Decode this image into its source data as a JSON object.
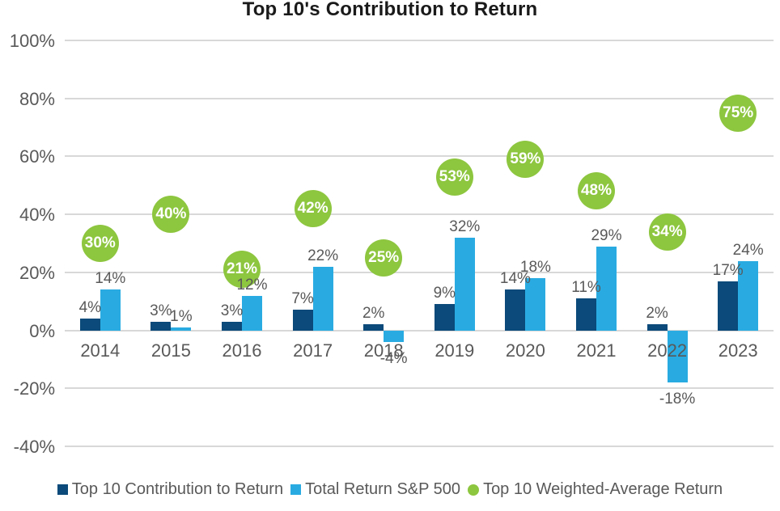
{
  "chart_data": {
    "type": "bar",
    "title": "Top 10's Contribution to Return",
    "categories": [
      "2014",
      "2015",
      "2016",
      "2017",
      "2018",
      "2019",
      "2020",
      "2021",
      "2022",
      "2023"
    ],
    "series": [
      {
        "name": "Top 10 Contribution to Return",
        "type": "bar",
        "marker": "square",
        "color": "#0b4a7a",
        "values": [
          4,
          3,
          3,
          7,
          2,
          9,
          14,
          11,
          2,
          17
        ]
      },
      {
        "name": "Total Return S&P 500",
        "type": "bar",
        "marker": "square",
        "color": "#29abe2",
        "values": [
          14,
          1,
          12,
          22,
          -4,
          32,
          18,
          29,
          -18,
          24
        ]
      },
      {
        "name": "Top 10 Weighted-Average Return",
        "type": "point",
        "marker": "circle",
        "color": "#8dc63f",
        "values": [
          30,
          40,
          21,
          42,
          25,
          53,
          59,
          48,
          34,
          75
        ]
      }
    ],
    "y_axis": {
      "ticks": [
        "100%",
        "80%",
        "60%",
        "40%",
        "20%",
        "0%",
        "-20%",
        "-40%"
      ],
      "tick_values": [
        100,
        80,
        60,
        40,
        20,
        0,
        -20,
        -40
      ],
      "min": -40,
      "max": 100
    },
    "value_suffix": "%",
    "data_labels": true,
    "grid": true,
    "legend_position": "bottom",
    "colors": {
      "label_text": "#595959",
      "gridline": "#d8d8d8",
      "title_text": "#1a1a1a",
      "point_label_text": "#ffffff"
    }
  }
}
